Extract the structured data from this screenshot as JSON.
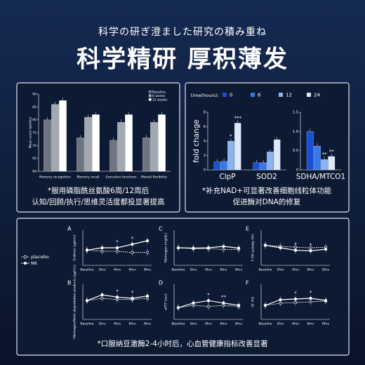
{
  "header": {
    "subtitle": "科学の研ぎ澄ました研究の積み重ね",
    "title": "科学精研 厚积薄发"
  },
  "panels": [
    {
      "caption": [
        "*服用磷脂酰丝氨酸6周/12周后",
        "认知/回顾/执行/思维灵活度都投显著提高"
      ],
      "chart_data": {
        "type": "bar",
        "ylabel": "Mean score (points)",
        "ylim": [
          60,
          90
        ],
        "yticks": [
          60,
          65,
          70,
          75,
          80,
          85,
          90
        ],
        "categories": [
          "Memory recognition",
          "Memory recall",
          "Executive functions",
          "Mental flexibility"
        ],
        "series": [
          {
            "name": "Baseline",
            "color": "#6e7480",
            "values": [
              80,
              73,
              72,
              73
            ]
          },
          {
            "name": "6 weeks",
            "color": "#a3a9b2",
            "values": [
              86,
              81,
              79,
              79
            ]
          },
          {
            "name": "12 weeks",
            "color": "#ffffff",
            "values": [
              87.5,
              82,
              82,
              82
            ]
          }
        ]
      }
    },
    {
      "caption": [
        "*补充NAD+可显著改善细胞线粒体功能",
        "促进酶对DNA的修复"
      ],
      "legend_title": "time(hours):",
      "chart_data": [
        {
          "type": "bar",
          "ylabel": "fold change",
          "ylim": [
            0,
            8
          ],
          "yticks": [
            0,
            2,
            4,
            6,
            8
          ],
          "categories": [
            "ClpP",
            "SOD2"
          ],
          "series": [
            {
              "name": "0",
              "color": "#1a4fd8",
              "values": [
                1.1,
                1
              ]
            },
            {
              "name": "6",
              "color": "#3a78e8",
              "values": [
                1.2,
                1
              ]
            },
            {
              "name": "12",
              "color": "#8ab4f0",
              "values": [
                4,
                2.5
              ]
            },
            {
              "name": "24",
              "color": "#dce9fb",
              "values": [
                6.5,
                4.2
              ]
            }
          ],
          "annotations": [
            "*",
            "***"
          ]
        },
        {
          "type": "bar",
          "ylim": [
            0,
            1.5
          ],
          "yticks": [
            0,
            {
              "value": 0.5,
              "label": "0.5"
            },
            {
              "value": 1,
              "label": "1.0"
            },
            {
              "value": 1.5,
              "label": "1.5"
            }
          ],
          "categories": [
            "SDHA/MTCO1"
          ],
          "series": [
            {
              "name": "0",
              "color": "#1a4fd8",
              "values": [
                1
              ]
            },
            {
              "name": "6",
              "color": "#3a78e8",
              "values": [
                0.62
              ]
            },
            {
              "name": "12",
              "color": "#8ab4f0",
              "values": [
                0.27
              ]
            },
            {
              "name": "24",
              "color": "#dce9fb",
              "values": [
                0.35
              ]
            }
          ],
          "annotations": [
            "**",
            "**"
          ]
        }
      ]
    },
    {
      "caption": [
        "*口服纳豆激酶2-4小时后，心血管健康指标改善显著"
      ],
      "legend": [
        "placebo",
        "NK"
      ],
      "chart_data": [
        {
          "type": "line",
          "letter": "A",
          "ylabel": "D-dimer (μg/mL)",
          "ylim": [
            0,
            3
          ],
          "categories": [
            "Baseline",
            "2hrs",
            "4hrs",
            "6hrs",
            "8hrs"
          ],
          "series": [
            {
              "name": "placebo",
              "values": [
                1.3,
                1.2,
                1.2,
                1.1,
                1.1
              ]
            },
            {
              "name": "NK",
              "values": [
                1.3,
                1.5,
                1.5,
                1.8,
                2.1
              ]
            }
          ],
          "annotations": [
            "*",
            "*"
          ]
        },
        {
          "type": "line",
          "letter": "C",
          "ylabel": "Fibrinogen (mg/dL)",
          "ylim": [
            200,
            400
          ],
          "categories": [
            "Baseline",
            "2hrs",
            "4hrs",
            "6hrs",
            "8hrs"
          ],
          "series": [
            {
              "name": "placebo",
              "values": [
                300,
                295,
                295,
                290,
                290
              ]
            },
            {
              "name": "NK",
              "values": [
                300,
                298,
                300,
                308,
                298
              ]
            }
          ]
        },
        {
          "type": "line",
          "letter": "E",
          "ylabel": "F VIII activity (%)",
          "ylim": [
            50,
            120
          ],
          "categories": [
            "Baseline",
            "2hrs",
            "4hrs",
            "6hrs",
            "8hrs"
          ],
          "series": [
            {
              "name": "placebo",
              "values": [
                90,
                88,
                86,
                85,
                86
              ]
            },
            {
              "name": "NK",
              "values": [
                90,
                85,
                80,
                79,
                82
              ]
            }
          ],
          "annotations": [
            "*",
            "*"
          ]
        },
        {
          "type": "line",
          "letter": "B",
          "ylabel": "Fibrinogen/fibrin degradation products (μg/mL)",
          "ylim": [
            0,
            3
          ],
          "categories": [
            "Baseline",
            "2hrs",
            "4hrs",
            "6hrs",
            "8hrs"
          ],
          "series": [
            {
              "name": "placebo",
              "values": [
                1.6,
                1.8,
                1.7,
                1.7,
                1.8
              ]
            },
            {
              "name": "NK",
              "values": [
                1.6,
                2.1,
                1.9,
                1.8,
                2.0
              ]
            }
          ],
          "annotations": [
            "*",
            "*"
          ]
        },
        {
          "type": "line",
          "letter": "D",
          "ylabel": "aPTT (sec)",
          "ylim": [
            25,
            40
          ],
          "categories": [
            "Baseline",
            "2hrs",
            "4hrs",
            "6hrs",
            "8hrs"
          ],
          "series": [
            {
              "name": "placebo",
              "values": [
                30,
                31,
                30.5,
                31,
                30.5
              ]
            },
            {
              "name": "NK",
              "values": [
                30,
                32,
                33,
                32,
                31
              ]
            }
          ],
          "annotations": [
            "*",
            "**"
          ]
        },
        {
          "type": "line",
          "letter": "F",
          "ylabel": "AT (%)",
          "ylim": [
            70,
            120
          ],
          "categories": [
            "Baseline",
            "2hrs",
            "4hrs",
            "6hrs",
            "8hrs"
          ],
          "series": [
            {
              "name": "placebo",
              "values": [
                90,
                93,
                94,
                95,
                96
              ]
            },
            {
              "name": "NK",
              "values": [
                90,
                98,
                99,
                100,
                97
              ]
            }
          ],
          "annotations": [
            "*",
            "*"
          ]
        }
      ]
    }
  ]
}
